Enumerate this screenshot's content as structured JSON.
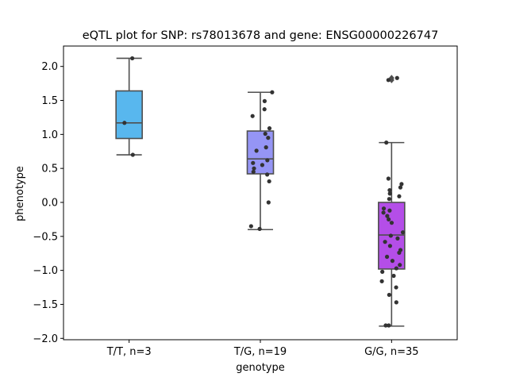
{
  "chart_data": {
    "type": "box",
    "title": "eQTL plot for SNP: rs78013678 and gene: ENSG00000226747",
    "xlabel": "genotype",
    "ylabel": "phenotype",
    "ylim": [
      -2.02,
      2.3
    ],
    "yticks": [
      2.0,
      1.5,
      1.0,
      0.5,
      0.0,
      -0.5,
      -1.0,
      -1.5,
      -2.0
    ],
    "ytick_labels": [
      "2.0",
      "1.5",
      "1.0",
      "0.5",
      "0.0",
      "−0.5",
      "−1.0",
      "−1.5",
      "−2.0"
    ],
    "grid": false,
    "categories": [
      "T/T, n=3",
      "T/G, n=19",
      "G/G, n=35"
    ],
    "boxes": [
      {
        "category": "T/T, n=3",
        "color": "#58b7ee",
        "whisker_low": 0.7,
        "q1": 0.94,
        "median": 1.17,
        "q3": 1.64,
        "whisker_high": 2.12,
        "fliers": [],
        "points": [
          0.7,
          1.17,
          2.12
        ]
      },
      {
        "category": "T/G, n=19",
        "color": "#9595f5",
        "whisker_low": -0.4,
        "q1": 0.42,
        "median": 0.64,
        "q3": 1.05,
        "whisker_high": 1.62,
        "fliers": [],
        "points": [
          1.62,
          1.49,
          1.37,
          1.27,
          1.09,
          1.01,
          0.95,
          0.81,
          0.76,
          0.62,
          0.58,
          0.55,
          0.5,
          0.45,
          0.41,
          0.31,
          0.0,
          -0.35,
          -0.39
        ]
      },
      {
        "category": "G/G, n=35",
        "color": "#b44ee8",
        "whisker_low": -1.82,
        "q1": -0.98,
        "median": -0.48,
        "q3": 0.0,
        "whisker_high": 0.88,
        "fliers": [
          1.83,
          1.8
        ],
        "points": [
          1.83,
          1.8,
          0.88,
          0.35,
          0.27,
          0.22,
          0.18,
          0.13,
          0.09,
          -0.09,
          -0.15,
          -0.2,
          -0.25,
          -0.3,
          -0.44,
          -0.49,
          -0.53,
          -0.58,
          -0.64,
          -0.7,
          -0.74,
          -0.8,
          -0.86,
          -0.92,
          -0.97,
          -1.02,
          -1.08,
          -1.16,
          -1.25,
          -1.36,
          -1.47,
          -1.81,
          -1.81,
          0.05,
          -0.12
        ]
      }
    ]
  }
}
